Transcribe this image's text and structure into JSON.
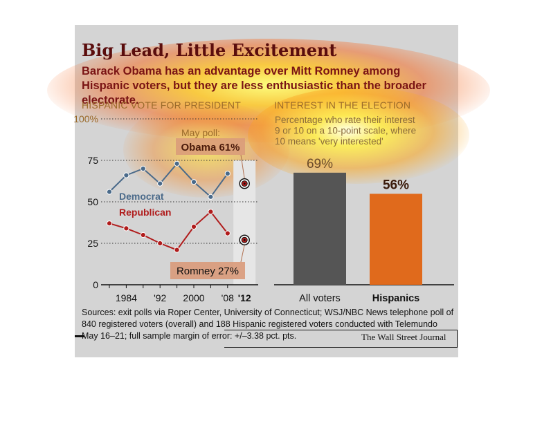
{
  "title": "Big Lead, Little Excitement",
  "subtitle": "Barack Obama has an advantage over Mitt Romney among Hispanic voters, but they are less enthusiastic than the broader electorate.",
  "sources": "Sources: exit polls via Roper Center, University of Connecticut; WSJ/NBC News telephone poll of 840 registered voters (overall) and 188 Hispanic registered voters conducted with Telemundo May 16–21; full sample margin of error: +/–3.38 pct. pts.",
  "credit": "The Wall Street Journal",
  "colors": {
    "democrat": "#4a6a8a",
    "republican": "#b01c1c",
    "all_voters_bar": "#555555",
    "hispanics_bar": "#e06a1c",
    "background": "#d4d4d4",
    "title": "#5a0d0d"
  },
  "chart_data": [
    {
      "type": "line",
      "title": "HISPANIC VOTE FOR PRESIDENT",
      "x": [
        1980,
        1984,
        1988,
        1992,
        1996,
        2000,
        2004,
        2008
      ],
      "x_tick_labels": [
        "1984",
        "'92",
        "2000",
        "'08",
        "'12"
      ],
      "x_tick_values": [
        1984,
        1992,
        2000,
        2008,
        2012
      ],
      "y_tick_labels": [
        "100%",
        "75",
        "50",
        "25",
        "0"
      ],
      "y_tick_values": [
        100,
        75,
        50,
        25,
        0
      ],
      "ylim": [
        0,
        100
      ],
      "grid": "dotted horizontal",
      "series": [
        {
          "name": "Democrat",
          "values": [
            56,
            66,
            70,
            61,
            73,
            62,
            53,
            67
          ]
        },
        {
          "name": "Republican",
          "values": [
            37,
            34,
            30,
            25,
            21,
            35,
            44,
            31
          ]
        }
      ],
      "poll_2012": {
        "label": "May poll:",
        "obama_label": "Obama 61%",
        "obama_value": 61,
        "romney_label": "Romney 27%",
        "romney_value": 27,
        "x": 2012
      }
    },
    {
      "type": "bar",
      "title": "INTEREST IN THE ELECTION",
      "note": "Percentage who rate their interest 9 or 10 on a 10-point scale, where 10 means 'very interested'",
      "categories": [
        "All voters",
        "Hispanics"
      ],
      "values": [
        69,
        56
      ],
      "value_labels": [
        "69%",
        "56%"
      ]
    }
  ]
}
